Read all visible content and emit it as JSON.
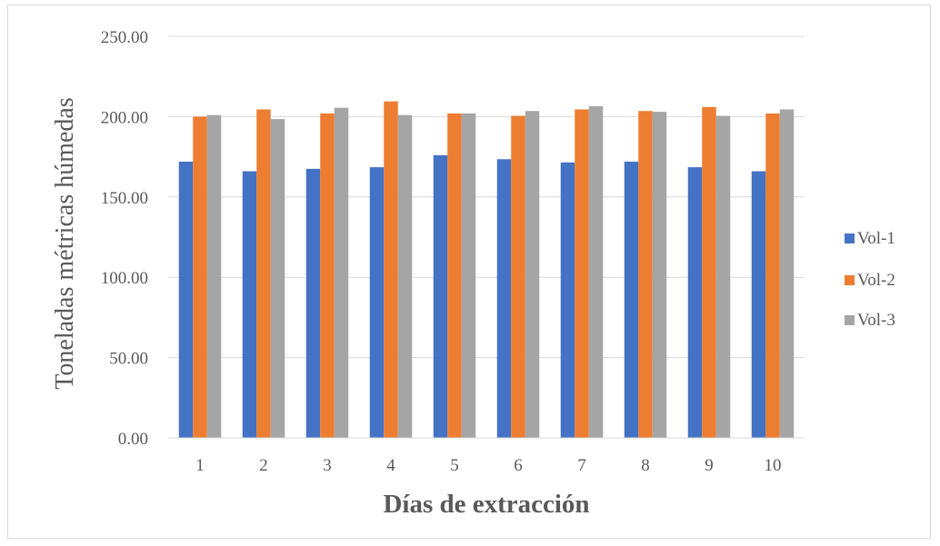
{
  "chart_data": {
    "type": "bar",
    "title": "",
    "xlabel": "Días de extracción",
    "ylabel": "Toneladas métricas húmedas",
    "categories": [
      "1",
      "2",
      "3",
      "4",
      "5",
      "6",
      "7",
      "8",
      "9",
      "10"
    ],
    "series": [
      {
        "name": "Vol-1",
        "color": "#4472c4",
        "values": [
          172,
          166,
          167.5,
          168.5,
          176,
          173.5,
          171.5,
          172,
          168.5,
          166
        ]
      },
      {
        "name": "Vol-2",
        "color": "#ed7d31",
        "values": [
          200,
          204.5,
          202,
          209.5,
          202,
          200.5,
          204.5,
          203.5,
          206,
          202
        ]
      },
      {
        "name": "Vol-3",
        "color": "#a5a5a5",
        "values": [
          201,
          198.5,
          205.5,
          201,
          202,
          203.5,
          206.5,
          203,
          200.5,
          204.5
        ]
      }
    ],
    "ylim": [
      0,
      250
    ],
    "yticks": [
      "0.00",
      "50.00",
      "100.00",
      "150.00",
      "200.00",
      "250.00"
    ],
    "grid": true,
    "legend_position": "right"
  }
}
